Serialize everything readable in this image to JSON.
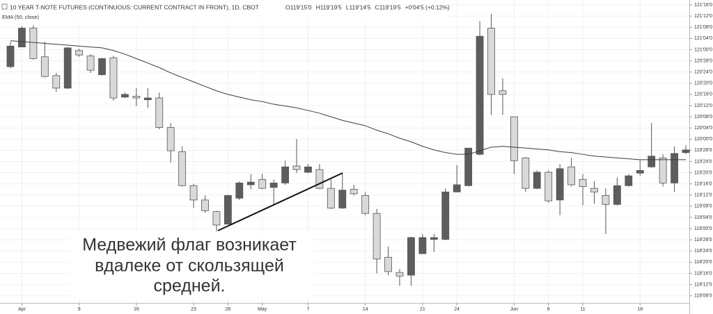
{
  "chart_data": {
    "type": "candlestick",
    "title": "10 YEAR T-NOTE FUTURES (CONTINUOUS: CURRENT CONTRACT IN FRONT), 1D, CBOT",
    "readout": [
      "O119'15'0",
      "H119'19'5",
      "L119'14'5",
      "C119'19'5",
      "+0'04'5 (+0.12%)"
    ],
    "annotation": [
      "Медвежий флаг возникает",
      "вдалеке от скользящей",
      "средней."
    ],
    "categories": [
      null,
      "Apr",
      null,
      null,
      null,
      null,
      "9",
      null,
      null,
      null,
      null,
      "16",
      null,
      null,
      null,
      null,
      "23",
      null,
      null,
      "26",
      null,
      null,
      "May",
      null,
      null,
      null,
      "7",
      null,
      null,
      null,
      null,
      "14",
      null,
      null,
      null,
      null,
      "21",
      null,
      null,
      "24",
      null,
      null,
      null,
      null,
      "Jun",
      null,
      null,
      "6",
      null,
      null,
      "11",
      null,
      null,
      null,
      null,
      "18",
      null,
      null,
      null,
      null
    ],
    "open": [
      120.81,
      121.03,
      121.24,
      120.92,
      120.71,
      120.57,
      120.99,
      120.93,
      120.72,
      120.91,
      120.47,
      120.48,
      120.44,
      120.46,
      120.13,
      119.86,
      119.48,
      119.32,
      119.19,
      119.05,
      119.34,
      119.49,
      119.55,
      119.46,
      119.51,
      119.7,
      119.63,
      119.66,
      119.45,
      119.23,
      119.44,
      119.37,
      119.17,
      118.68,
      118.51,
      118.48,
      118.72,
      118.88,
      118.88,
      119.41,
      119.48,
      119.83,
      121.24,
      120.54,
      120.25,
      119.79,
      119.45,
      119.63,
      119.32,
      119.69,
      119.55,
      119.45,
      119.37,
      119.27,
      119.48,
      119.62,
      119.69,
      119.79,
      119.51,
      119.85
    ],
    "high": [
      121.09,
      121.26,
      121.27,
      121.09,
      120.74,
      121.03,
      121.01,
      120.95,
      120.91,
      120.93,
      120.52,
      120.57,
      120.57,
      120.52,
      120.18,
      119.92,
      119.5,
      119.37,
      119.2,
      119.38,
      119.53,
      119.61,
      119.61,
      119.55,
      119.76,
      120.0,
      119.72,
      119.72,
      119.55,
      119.62,
      119.49,
      119.41,
      119.22,
      118.8,
      118.55,
      118.91,
      118.94,
      118.94,
      119.45,
      119.71,
      119.9,
      121.32,
      121.4,
      120.68,
      120.25,
      119.8,
      119.65,
      119.65,
      119.72,
      119.79,
      119.61,
      119.53,
      119.45,
      119.57,
      119.61,
      119.77,
      120.18,
      119.83,
      119.92,
      119.93
    ],
    "low": [
      120.79,
      121.03,
      120.89,
      120.69,
      120.53,
      120.56,
      120.92,
      120.74,
      120.71,
      120.43,
      120.46,
      120.37,
      120.35,
      120.11,
      119.74,
      119.47,
      119.23,
      119.18,
      118.97,
      119.05,
      119.32,
      119.44,
      119.44,
      119.26,
      119.49,
      119.62,
      119.62,
      119.44,
      119.22,
      119.22,
      119.37,
      119.15,
      118.5,
      118.48,
      118.36,
      118.36,
      118.72,
      118.74,
      118.87,
      119.41,
      119.47,
      119.82,
      120.27,
      120.27,
      119.61,
      119.41,
      119.44,
      119.29,
      119.15,
      119.47,
      119.26,
      119.28,
      118.94,
      119.26,
      119.47,
      119.59,
      119.68,
      119.47,
      119.41,
      119.83
    ],
    "close": [
      121.04,
      121.24,
      120.9,
      120.7,
      120.57,
      121.02,
      120.94,
      120.77,
      120.9,
      120.46,
      120.5,
      120.46,
      120.46,
      120.13,
      119.87,
      119.48,
      119.32,
      119.2,
      119.04,
      119.37,
      119.51,
      119.52,
      119.45,
      119.51,
      119.69,
      119.66,
      119.69,
      119.45,
      119.23,
      119.43,
      119.39,
      119.17,
      118.66,
      118.52,
      118.47,
      118.9,
      118.9,
      118.9,
      119.41,
      119.49,
      119.9,
      121.15,
      120.5,
      120.5,
      119.76,
      119.45,
      119.63,
      119.31,
      119.67,
      119.49,
      119.47,
      119.41,
      119.27,
      119.48,
      119.59,
      119.65,
      119.81,
      119.51,
      119.84,
      119.88
    ],
    "up_color": "#5d5d5d",
    "down_color": "#d9d9d9",
    "series": [
      {
        "name": "EMA (50, close)",
        "color": "#3a3a3a",
        "values": [
          121.1,
          121.09,
          121.08,
          121.07,
          121.06,
          121.05,
          121.04,
          121.03,
          121.02,
          120.99,
          120.95,
          120.9,
          120.85,
          120.8,
          120.74,
          120.69,
          120.64,
          120.59,
          120.54,
          120.5,
          120.47,
          120.44,
          120.42,
          120.39,
          120.37,
          120.35,
          120.32,
          120.29,
          120.25,
          120.21,
          120.18,
          120.15,
          120.1,
          120.06,
          120.01,
          119.97,
          119.92,
          119.88,
          119.85,
          119.83,
          119.83,
          119.87,
          119.91,
          119.92,
          119.91,
          119.9,
          119.89,
          119.88,
          119.86,
          119.85,
          119.83,
          119.81,
          119.8,
          119.79,
          119.78,
          119.77,
          119.77,
          119.77,
          119.77,
          119.77
        ]
      }
    ],
    "ylim": [
      118.17,
      121.555
    ],
    "yticks": [
      {
        "value": 121.5,
        "label": "121'16'0"
      },
      {
        "value": 121.375,
        "label": "121'12'0"
      },
      {
        "value": 121.25,
        "label": "121'08'0"
      },
      {
        "value": 121.125,
        "label": "121'04'0"
      },
      {
        "value": 121,
        "label": "121'00'0"
      },
      {
        "value": 120.875,
        "label": "120'28'0"
      },
      {
        "value": 120.75,
        "label": "120'24'0"
      },
      {
        "value": 120.625,
        "label": "120'20'0"
      },
      {
        "value": 120.5,
        "label": "120'16'0"
      },
      {
        "value": 120.375,
        "label": "120'12'0"
      },
      {
        "value": 120.25,
        "label": "120'08'0"
      },
      {
        "value": 120.125,
        "label": "120'04'0"
      },
      {
        "value": 120,
        "label": "120'00'0"
      },
      {
        "value": 119.875,
        "label": "119'28'0"
      },
      {
        "value": 119.75,
        "label": "119'24'0"
      },
      {
        "value": 119.625,
        "label": "119'20'0"
      },
      {
        "value": 119.5,
        "label": "119'16'0"
      },
      {
        "value": 119.375,
        "label": "119'12'0"
      },
      {
        "value": 119.25,
        "label": "119'08'0"
      },
      {
        "value": 119.125,
        "label": "119'04'0"
      },
      {
        "value": 119,
        "label": "119'00'0"
      },
      {
        "value": 118.875,
        "label": "118'28'0"
      },
      {
        "value": 118.75,
        "label": "118'24'0"
      },
      {
        "value": 118.625,
        "label": "118'20'0"
      },
      {
        "value": 118.5,
        "label": "118'16'0"
      },
      {
        "value": 118.375,
        "label": "118'12'0"
      },
      {
        "value": 118.25,
        "label": "118'08'0"
      }
    ],
    "grid": true
  }
}
